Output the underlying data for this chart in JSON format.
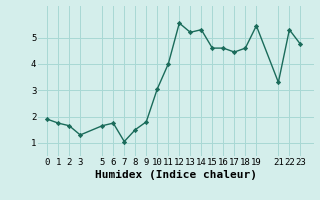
{
  "xlabel": "Humidex (Indice chaleur)",
  "x_values": [
    0,
    1,
    2,
    3,
    5,
    6,
    7,
    8,
    9,
    10,
    11,
    12,
    13,
    14,
    15,
    16,
    17,
    18,
    19,
    21,
    22,
    23
  ],
  "y_values": [
    1.9,
    1.75,
    1.65,
    1.3,
    1.65,
    1.75,
    1.05,
    1.5,
    1.8,
    3.05,
    4.0,
    5.55,
    5.2,
    5.3,
    4.6,
    4.6,
    4.45,
    4.6,
    5.45,
    3.3,
    5.3,
    4.75
  ],
  "line_color": "#1a6b5a",
  "marker": "D",
  "marker_size": 2.2,
  "line_width": 1.0,
  "bg_color": "#d4eeeb",
  "grid_color": "#a8d8d4",
  "tick_label_fontsize": 6.5,
  "xlabel_fontsize": 8,
  "ylim": [
    0.5,
    6.2
  ],
  "yticks": [
    1,
    2,
    3,
    4,
    5
  ],
  "xlim": [
    -0.8,
    24.2
  ],
  "xticks": [
    0,
    1,
    2,
    3,
    5,
    6,
    7,
    8,
    9,
    10,
    11,
    12,
    13,
    14,
    15,
    16,
    17,
    18,
    19,
    21,
    22,
    23
  ]
}
